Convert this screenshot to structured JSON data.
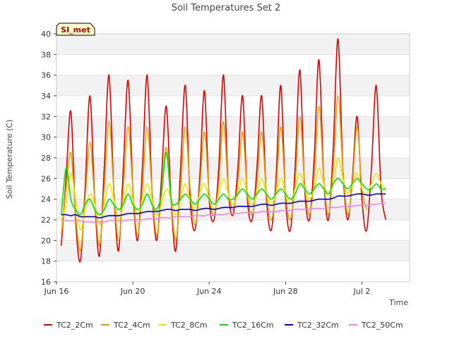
{
  "chart_data": {
    "type": "line",
    "title": "Soil Temperatures Set 2",
    "xlabel": "Time",
    "ylabel": "Soil Temperature (C)",
    "badge": "SI_met",
    "ylim": [
      16,
      40
    ],
    "yticks": [
      16,
      18,
      20,
      22,
      24,
      26,
      28,
      30,
      32,
      34,
      36,
      38,
      40
    ],
    "xlim": [
      "2024-06-16",
      "2024-07-04T12:00"
    ],
    "xticks": [
      {
        "date": "2024-06-16",
        "label": "Jun 16"
      },
      {
        "date": "2024-06-20",
        "label": "Jun 20"
      },
      {
        "date": "2024-06-24",
        "label": "Jun 24"
      },
      {
        "date": "2024-06-28",
        "label": "Jun 28"
      },
      {
        "date": "2024-07-02",
        "label": "Jul 2"
      }
    ],
    "grid": "horizontal bands",
    "legend_position": "bottom",
    "series": [
      {
        "name": "TC2_2Cm",
        "color": "#dd0000",
        "start": "2024-06-16T06:00",
        "step_hours": 6,
        "values": [
          19.5,
          26,
          32.5,
          22,
          18,
          25,
          34,
          24,
          18.5,
          27,
          36,
          25,
          19,
          27,
          35.5,
          25,
          20,
          27,
          36,
          25,
          20,
          26,
          33,
          24,
          19,
          27,
          35,
          24,
          21,
          26,
          34.5,
          24,
          22,
          27,
          36,
          25,
          22.5,
          27,
          34,
          24,
          22,
          27,
          34,
          24,
          21,
          26,
          35,
          24,
          21,
          27,
          36.5,
          25,
          22,
          28,
          37.5,
          26,
          22,
          29,
          39.5,
          27,
          22,
          26,
          32,
          24,
          21,
          27,
          35,
          25,
          22
        ]
      },
      {
        "name": "TC2_4Cm",
        "color": "#e69f00",
        "start": "2024-06-16T06:00",
        "step_hours": 6,
        "values": [
          20.5,
          25,
          28.5,
          22.5,
          19,
          24,
          29.5,
          24,
          19.5,
          25,
          31.5,
          25,
          20,
          25,
          31,
          25,
          20.5,
          25,
          31,
          25,
          20.5,
          24.5,
          29,
          24,
          20,
          25,
          31,
          25,
          21.5,
          25,
          30.5,
          24.5,
          22.5,
          25.5,
          31.5,
          25,
          23,
          25.5,
          30.5,
          24.5,
          22.5,
          25.5,
          30.5,
          24.5,
          22,
          25,
          31,
          24.5,
          22,
          25.5,
          32,
          25.5,
          22.5,
          26,
          33,
          26,
          22.5,
          27,
          34,
          27,
          22.5,
          25.5,
          31,
          25,
          23
        ]
      },
      {
        "name": "TC2_8Cm",
        "color": "#f0e400",
        "start": "2024-06-16T06:00",
        "step_hours": 6,
        "values": [
          22,
          23.5,
          26.5,
          24,
          21,
          23,
          24.5,
          23.5,
          21.5,
          23.5,
          25.5,
          24,
          22,
          23.5,
          25.5,
          24,
          22.5,
          24,
          25.5,
          24,
          22.5,
          23.5,
          25,
          24,
          22.5,
          24,
          25.5,
          24,
          23,
          24.5,
          25.5,
          24,
          23,
          24.5,
          26,
          24.5,
          23.5,
          24.5,
          26,
          24.5,
          23.5,
          24.5,
          26,
          24.5,
          23.5,
          24.5,
          26,
          24.5,
          23.5,
          25,
          26.5,
          25,
          24,
          25,
          27,
          25.5,
          24.5,
          25.5,
          28,
          26,
          24.5,
          25.5,
          26.5,
          25,
          24.5,
          25.5,
          26.5,
          25.5,
          25
        ]
      },
      {
        "name": "TC2_16Cm",
        "color": "#00e400",
        "start": "2024-06-16T06:00",
        "step_hours": 6,
        "values": [
          22.5,
          27,
          24,
          23,
          22.5,
          23.5,
          24,
          23,
          22.5,
          23,
          24,
          23.5,
          23,
          23.5,
          24.5,
          23.5,
          23,
          23.5,
          24.5,
          23.5,
          23,
          24.5,
          28.5,
          24,
          23.5,
          24,
          24.5,
          24,
          23.5,
          24,
          24.5,
          24,
          23.5,
          24,
          24.5,
          24,
          24,
          24.5,
          25,
          24.5,
          24,
          24.5,
          25,
          24.5,
          24,
          24.5,
          25,
          24.5,
          24,
          24.5,
          25.5,
          25,
          24.5,
          25,
          25.5,
          25,
          24.5,
          25.5,
          26,
          25.5,
          25,
          25.5,
          26,
          25.5,
          25,
          25,
          25.5,
          25,
          25
        ]
      },
      {
        "name": "TC2_32Cm",
        "color": "#0000cc",
        "start": "2024-06-16T06:00",
        "step_hours": 6,
        "values": [
          22.5,
          22.5,
          22.4,
          22.5,
          22.3,
          22.3,
          22.3,
          22.3,
          22.2,
          22.3,
          22.4,
          22.4,
          22.4,
          22.5,
          22.6,
          22.6,
          22.6,
          22.7,
          22.8,
          22.8,
          22.8,
          22.9,
          23,
          23,
          22.9,
          23,
          23,
          23,
          22.9,
          23,
          23.1,
          23.1,
          23,
          23.1,
          23.2,
          23.2,
          23.2,
          23.3,
          23.3,
          23.3,
          23.3,
          23.4,
          23.5,
          23.5,
          23.4,
          23.5,
          23.6,
          23.6,
          23.6,
          23.7,
          23.8,
          23.8,
          23.8,
          23.9,
          24,
          24,
          24,
          24.1,
          24.3,
          24.3,
          24.3,
          24.4,
          24.5,
          24.5,
          24.4,
          24.4,
          24.5,
          24.5,
          24.5
        ]
      },
      {
        "name": "TC2_50Cm",
        "color": "#ee82ee",
        "start": "2024-06-16T06:00",
        "step_hours": 6,
        "values": [
          21.9,
          21.9,
          21.9,
          21.9,
          21.9,
          21.8,
          21.8,
          21.8,
          21.8,
          21.8,
          21.9,
          21.9,
          21.9,
          21.9,
          22,
          22,
          22,
          22,
          22.1,
          22.1,
          22.1,
          22.2,
          22.2,
          22.2,
          22.3,
          22.3,
          22.3,
          22.3,
          22.4,
          22.4,
          22.4,
          22.5,
          22.5,
          22.5,
          22.5,
          22.6,
          22.6,
          22.6,
          22.7,
          22.7,
          22.7,
          22.7,
          22.8,
          22.8,
          22.8,
          22.8,
          22.9,
          22.9,
          22.9,
          23,
          23,
          23,
          23,
          23.1,
          23.1,
          23.1,
          23.2,
          23.2,
          23.2,
          23.3,
          23.3,
          23.3,
          23.4,
          23.4,
          23.4,
          23.5,
          23.5,
          23.6,
          23.6
        ]
      }
    ]
  }
}
